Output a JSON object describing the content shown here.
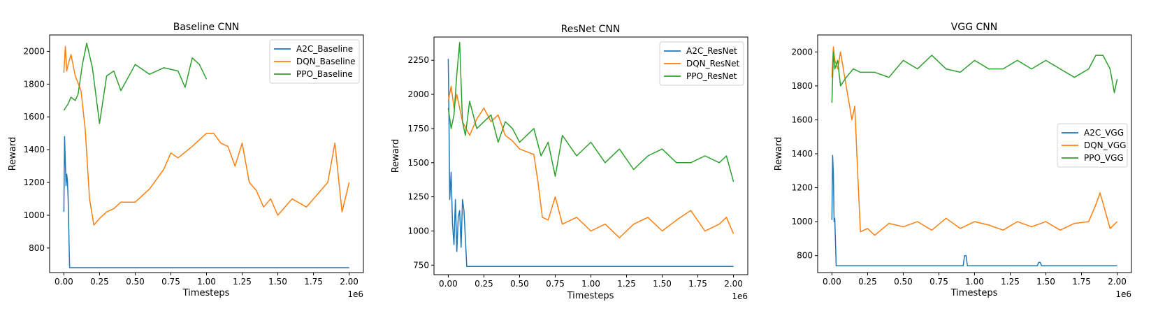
{
  "colors": {
    "A2C": "#1f77b4",
    "DQN": "#ff7f0e",
    "PPO": "#2ca02c"
  },
  "chart_data": [
    {
      "type": "line",
      "title": "Baseline CNN",
      "xlabel": "Timesteps",
      "ylabel": "Reward",
      "x_multiplier_label": "1e6",
      "xlim": [
        -0.1,
        2.1
      ],
      "ylim": [
        650,
        2100
      ],
      "xticks": [
        0.0,
        0.25,
        0.5,
        0.75,
        1.0,
        1.25,
        1.5,
        1.75,
        2.0
      ],
      "xtick_labels": [
        "0.00",
        "0.25",
        "0.50",
        "0.75",
        "1.00",
        "1.25",
        "1.50",
        "1.75",
        "2.00"
      ],
      "yticks": [
        800,
        1000,
        1200,
        1400,
        1600,
        1800,
        2000
      ],
      "ytick_labels": [
        "800",
        "1000",
        "1200",
        "1400",
        "1600",
        "1800",
        "2000"
      ],
      "legend_position": "top-right",
      "grid": false,
      "series": [
        {
          "name": "A2C_Baseline",
          "color": "#1f77b4",
          "x": [
            0.0,
            0.005,
            0.01,
            0.015,
            0.02,
            0.025,
            0.03,
            0.04,
            0.06,
            2.0
          ],
          "y": [
            1020,
            1480,
            1320,
            1180,
            1250,
            1210,
            1100,
            680,
            680,
            680
          ]
        },
        {
          "name": "DQN_Baseline",
          "color": "#ff7f0e",
          "x": [
            0.0,
            0.01,
            0.02,
            0.03,
            0.05,
            0.08,
            0.12,
            0.15,
            0.18,
            0.21,
            0.25,
            0.3,
            0.35,
            0.4,
            0.5,
            0.6,
            0.7,
            0.75,
            0.8,
            0.9,
            1.0,
            1.05,
            1.1,
            1.15,
            1.2,
            1.25,
            1.3,
            1.35,
            1.4,
            1.45,
            1.5,
            1.6,
            1.7,
            1.75,
            1.8,
            1.85,
            1.9,
            1.95,
            2.0
          ],
          "y": [
            1870,
            2030,
            1880,
            1920,
            1980,
            1850,
            1760,
            1520,
            1100,
            940,
            980,
            1020,
            1040,
            1080,
            1080,
            1160,
            1280,
            1380,
            1350,
            1420,
            1500,
            1500,
            1440,
            1420,
            1300,
            1440,
            1200,
            1150,
            1050,
            1100,
            1000,
            1100,
            1050,
            1100,
            1150,
            1200,
            1440,
            1020,
            1200
          ]
        },
        {
          "name": "PPO_Baseline",
          "color": "#2ca02c",
          "x": [
            0.0,
            0.03,
            0.05,
            0.08,
            0.1,
            0.13,
            0.16,
            0.2,
            0.25,
            0.3,
            0.35,
            0.4,
            0.5,
            0.6,
            0.7,
            0.8,
            0.85,
            0.9,
            0.95,
            1.0
          ],
          "y": [
            1640,
            1680,
            1720,
            1700,
            1740,
            1920,
            2050,
            1900,
            1560,
            1850,
            1880,
            1760,
            1920,
            1860,
            1900,
            1880,
            1780,
            1960,
            1920,
            1830
          ]
        }
      ]
    },
    {
      "type": "line",
      "title": "ResNet CNN",
      "xlabel": "Timesteps",
      "ylabel": "Reward",
      "x_multiplier_label": "1e6",
      "xlim": [
        -0.1,
        2.1
      ],
      "ylim": [
        680,
        2420
      ],
      "xticks": [
        0.0,
        0.25,
        0.5,
        0.75,
        1.0,
        1.25,
        1.5,
        1.75,
        2.0
      ],
      "xtick_labels": [
        "0.00",
        "0.25",
        "0.50",
        "0.75",
        "1.00",
        "1.25",
        "1.50",
        "1.75",
        "2.00"
      ],
      "yticks": [
        750,
        1000,
        1250,
        1500,
        1750,
        2000,
        2250
      ],
      "ytick_labels": [
        "750",
        "1000",
        "1250",
        "1500",
        "1750",
        "2000",
        "2250"
      ],
      "legend_position": "top-right",
      "grid": false,
      "series": [
        {
          "name": "A2C_ResNet",
          "color": "#1f77b4",
          "x": [
            0.0,
            0.005,
            0.01,
            0.02,
            0.03,
            0.04,
            0.05,
            0.06,
            0.07,
            0.08,
            0.09,
            0.1,
            0.11,
            0.13,
            0.15,
            2.0
          ],
          "y": [
            2260,
            1850,
            1230,
            1430,
            1050,
            900,
            1230,
            850,
            1100,
            1150,
            880,
            1230,
            1150,
            740,
            740,
            740
          ]
        },
        {
          "name": "DQN_ResNet",
          "color": "#ff7f0e",
          "x": [
            0.0,
            0.02,
            0.04,
            0.06,
            0.1,
            0.15,
            0.2,
            0.25,
            0.3,
            0.35,
            0.4,
            0.45,
            0.5,
            0.55,
            0.6,
            0.63,
            0.66,
            0.7,
            0.75,
            0.8,
            0.9,
            1.0,
            1.1,
            1.2,
            1.3,
            1.4,
            1.5,
            1.6,
            1.7,
            1.8,
            1.9,
            1.95,
            2.0
          ],
          "y": [
            1950,
            2060,
            1900,
            2000,
            1800,
            1700,
            1820,
            1900,
            1800,
            1850,
            1700,
            1660,
            1600,
            1580,
            1560,
            1350,
            1100,
            1080,
            1250,
            1050,
            1100,
            1000,
            1050,
            950,
            1050,
            1100,
            1000,
            1080,
            1150,
            1000,
            1050,
            1100,
            980
          ]
        },
        {
          "name": "PPO_ResNet",
          "color": "#2ca02c",
          "x": [
            0.0,
            0.02,
            0.04,
            0.06,
            0.08,
            0.1,
            0.12,
            0.15,
            0.2,
            0.25,
            0.3,
            0.35,
            0.4,
            0.45,
            0.5,
            0.55,
            0.6,
            0.65,
            0.7,
            0.75,
            0.8,
            0.9,
            1.0,
            1.1,
            1.2,
            1.3,
            1.4,
            1.5,
            1.6,
            1.7,
            1.8,
            1.9,
            1.95,
            2.0
          ],
          "y": [
            1900,
            1750,
            1850,
            2150,
            2380,
            1800,
            1700,
            1950,
            1750,
            1800,
            1850,
            1650,
            1800,
            1750,
            1650,
            1700,
            1750,
            1550,
            1650,
            1400,
            1700,
            1550,
            1650,
            1500,
            1600,
            1450,
            1550,
            1600,
            1500,
            1500,
            1550,
            1500,
            1550,
            1360
          ]
        }
      ]
    },
    {
      "type": "line",
      "title": "VGG CNN",
      "xlabel": "Timesteps",
      "ylabel": "Reward",
      "x_multiplier_label": "1e6",
      "xlim": [
        -0.1,
        2.1
      ],
      "ylim": [
        700,
        2100
      ],
      "xticks": [
        0.0,
        0.25,
        0.5,
        0.75,
        1.0,
        1.25,
        1.5,
        1.75,
        2.0
      ],
      "xtick_labels": [
        "0.00",
        "0.25",
        "0.50",
        "0.75",
        "1.00",
        "1.25",
        "1.50",
        "1.75",
        "2.00"
      ],
      "yticks": [
        800,
        1000,
        1200,
        1400,
        1600,
        1800,
        2000
      ],
      "ytick_labels": [
        "800",
        "1000",
        "1200",
        "1400",
        "1600",
        "1800",
        "2000"
      ],
      "legend_position": "center-right",
      "grid": false,
      "series": [
        {
          "name": "A2C_VGG",
          "color": "#1f77b4",
          "x": [
            0.0,
            0.005,
            0.01,
            0.015,
            0.02,
            0.03,
            0.05,
            0.9,
            0.92,
            0.93,
            0.94,
            0.95,
            1.44,
            1.45,
            1.46,
            1.47,
            2.0
          ],
          "y": [
            1010,
            1390,
            1280,
            1000,
            1020,
            740,
            740,
            740,
            740,
            800,
            800,
            740,
            740,
            760,
            760,
            740,
            740
          ]
        },
        {
          "name": "DQN_VGG",
          "color": "#ff7f0e",
          "x": [
            0.0,
            0.01,
            0.02,
            0.04,
            0.06,
            0.08,
            0.1,
            0.12,
            0.14,
            0.16,
            0.18,
            0.2,
            0.25,
            0.3,
            0.4,
            0.5,
            0.6,
            0.7,
            0.8,
            0.9,
            1.0,
            1.1,
            1.2,
            1.3,
            1.4,
            1.5,
            1.6,
            1.7,
            1.8,
            1.85,
            1.88,
            1.92,
            1.95,
            2.0
          ],
          "y": [
            1850,
            2030,
            1950,
            1900,
            2000,
            1900,
            1800,
            1700,
            1600,
            1680,
            1300,
            940,
            960,
            920,
            990,
            970,
            1000,
            950,
            1020,
            960,
            1000,
            980,
            950,
            1000,
            970,
            1000,
            950,
            990,
            1000,
            1100,
            1170,
            1050,
            960,
            1000
          ]
        },
        {
          "name": "PPO_VGG",
          "color": "#2ca02c",
          "x": [
            0.0,
            0.01,
            0.02,
            0.04,
            0.06,
            0.1,
            0.15,
            0.2,
            0.3,
            0.4,
            0.5,
            0.6,
            0.7,
            0.8,
            0.9,
            1.0,
            1.1,
            1.2,
            1.3,
            1.4,
            1.5,
            1.6,
            1.7,
            1.8,
            1.85,
            1.9,
            1.95,
            1.98,
            2.0
          ],
          "y": [
            1700,
            2000,
            1900,
            1950,
            1800,
            1850,
            1900,
            1880,
            1880,
            1850,
            1950,
            1900,
            1980,
            1900,
            1880,
            1950,
            1900,
            1900,
            1950,
            1900,
            1950,
            1900,
            1850,
            1900,
            1980,
            1980,
            1900,
            1760,
            1840
          ]
        }
      ]
    }
  ]
}
